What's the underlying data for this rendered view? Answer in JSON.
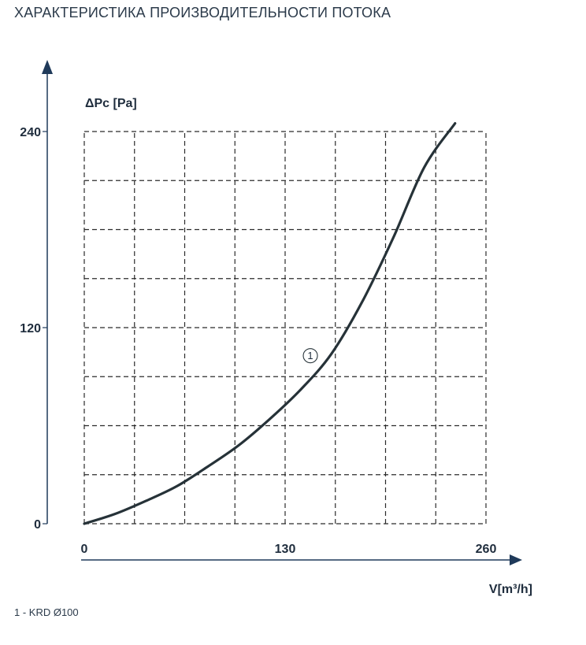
{
  "title": "ХАРАКТЕРИСТИКА ПРОИЗВОДИТЕЛЬНОСТИ ПОТОКА",
  "footnote": "1 - KRD Ø100",
  "colors": {
    "curve": "#263238",
    "grid": "#2b2b2b",
    "axis": "#1f3a5a",
    "text": "#1f2d3d"
  },
  "chart_data": {
    "type": "line",
    "xlabel": "V[m³/h]",
    "ylabel": "ΔPc [Pa]",
    "xlim": [
      0,
      260
    ],
    "ylim": [
      0,
      240
    ],
    "xticks": [
      0,
      130,
      260
    ],
    "yticks": [
      0,
      120,
      240
    ],
    "grid": true,
    "grid_x_step": 32.5,
    "grid_y_step": 30,
    "series": [
      {
        "name": "1",
        "x": [
          0,
          20,
          40,
          60,
          80,
          100,
          120,
          140,
          160,
          180,
          200,
          220,
          240
        ],
        "y": [
          0,
          6,
          14,
          23,
          35,
          48,
          64,
          82,
          104,
          136,
          175,
          218,
          245
        ]
      }
    ],
    "annotations": [
      {
        "text": "1",
        "x": 155,
        "y": 98
      }
    ]
  }
}
